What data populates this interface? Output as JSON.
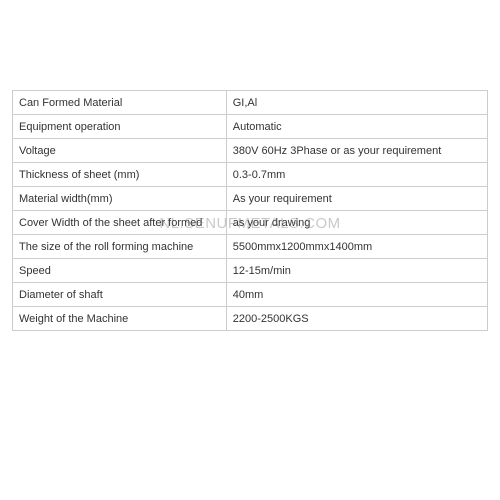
{
  "specs_table": {
    "rows": [
      {
        "label": "Can Formed Material",
        "value": "GI,Al"
      },
      {
        "label": "Equipment operation",
        "value": "Automatic"
      },
      {
        "label": "Voltage",
        "value": "380V 60Hz 3Phase or as your requirement"
      },
      {
        "label": "Thickness of sheet (mm)",
        "value": "0.3-0.7mm"
      },
      {
        "label": "Material width(mm)",
        "value": "As your requirement"
      },
      {
        "label": "Cover Width of the sheet after formed",
        "value": "as your drawing"
      },
      {
        "label": "The size of the roll forming machine",
        "value": "5500mmx1200mmx1400mm"
      },
      {
        "label": "Speed",
        "value": "12-15m/min"
      },
      {
        "label": "Diameter of shaft",
        "value": "40mm"
      },
      {
        "label": "Weight of the Machine",
        "value": "2200-2500KGS"
      }
    ],
    "border_color": "#cccccc",
    "text_color": "#333333",
    "font_size": 11,
    "background_color": "#ffffff",
    "column_widths": [
      "45%",
      "55%"
    ]
  },
  "watermark": {
    "text": "NL.SENUFMETALS.COM",
    "color": "rgba(100,100,100,0.35)",
    "font_size": 15
  }
}
